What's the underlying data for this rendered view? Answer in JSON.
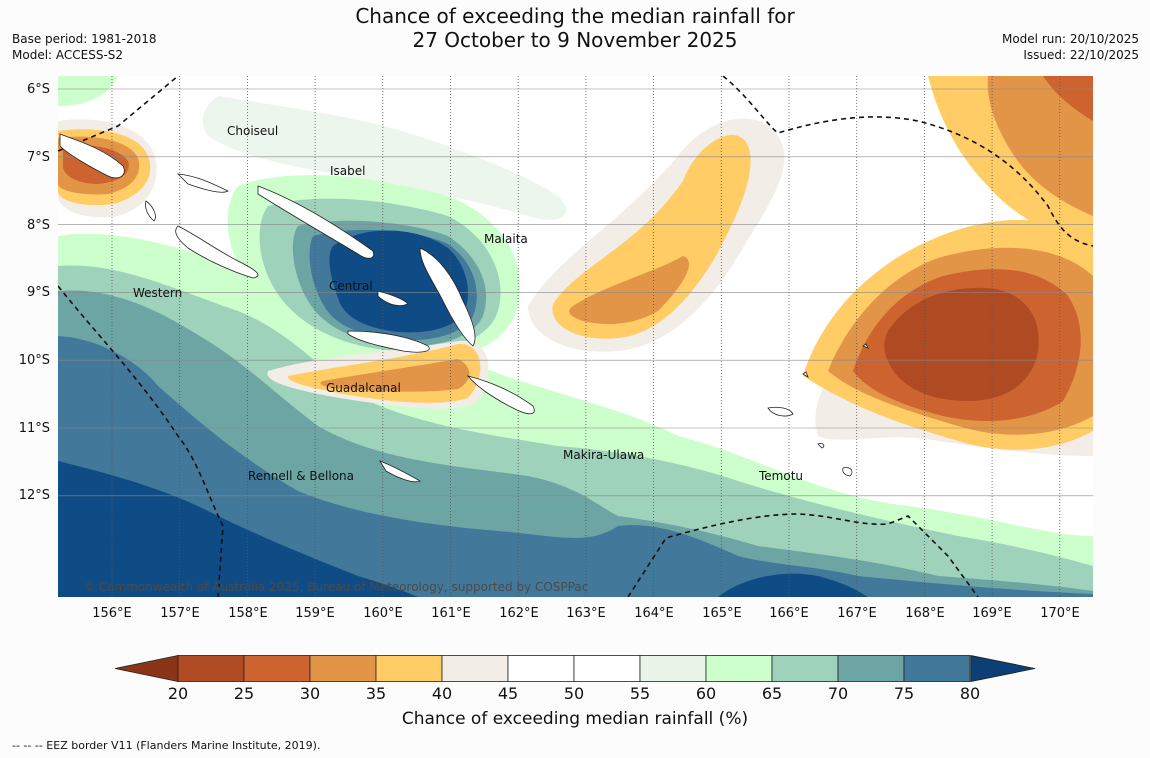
{
  "title": {
    "line1": "Chance of exceeding the median rainfall for",
    "line2": "27 October to 9 November 2025"
  },
  "meta_left": {
    "base_period": "Base period: 1981-2018",
    "model": "Model: ACCESS-S2"
  },
  "meta_right": {
    "model_run": "Model run: 20/10/2025",
    "issued": "Issued: 22/10/2025"
  },
  "map": {
    "longitude_labels": [
      "156°E",
      "157°E",
      "158°E",
      "159°E",
      "160°E",
      "161°E",
      "162°E",
      "163°E",
      "164°E",
      "165°E",
      "166°E",
      "167°E",
      "168°E",
      "169°E",
      "170°E"
    ],
    "latitude_labels": [
      "6°S",
      "7°S",
      "8°S",
      "9°S",
      "10°S",
      "11°S",
      "12°S"
    ],
    "regions": {
      "choiseul": "Choiseul",
      "isabel": "Isabel",
      "malaita": "Malaita",
      "western": "Western",
      "central": "Central",
      "guadalcanal": "Guadalcanal",
      "makira_ulawa": "Makira-Ulawa",
      "temotu": "Temotu",
      "rennell_bellona": "Rennell & Bellona"
    },
    "copyright": "© Commonwealth of Australia 2025, Bureau of Meteorology, supported by COSPPac"
  },
  "colorbar": {
    "ticks": [
      "20",
      "25",
      "30",
      "35",
      "40",
      "45",
      "50",
      "55",
      "60",
      "65",
      "70",
      "75",
      "80"
    ],
    "colors": [
      "#b04a22",
      "#cd6430",
      "#e29447",
      "#ffcc66",
      "#f2ede7",
      "#ffffff",
      "#ffffff",
      "#eaf5ea",
      "#ccffcc",
      "#9ed2bb",
      "#6da5a5",
      "#42789a",
      "#0f4c86"
    ],
    "under_color": "#8a3418",
    "over_color": "#0b3f75",
    "title": "Chance of exceeding median rainfall (%)"
  },
  "eez_note": "--  --  -- EEZ border V11 (Flanders Marine Institute, 2019)."
}
